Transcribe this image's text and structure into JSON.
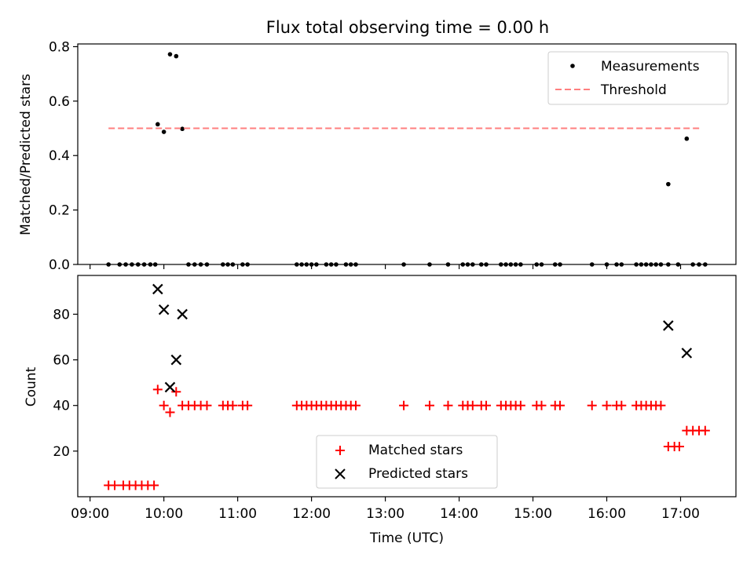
{
  "chart_data": [
    {
      "type": "scatter",
      "title": "Flux total observing time = 0.00 h",
      "xlabel": "",
      "ylabel": "Matched/Predicted stars",
      "xlim": [
        "08:50",
        "17:45"
      ],
      "ylim": [
        0,
        0.81
      ],
      "yticks": [
        "0.0",
        "0.2",
        "0.4",
        "0.6",
        "0.8"
      ],
      "grid": false,
      "legend_position": "upper right",
      "series": [
        {
          "name": "Measurements",
          "marker": "dot",
          "color": "#000000",
          "points": [
            [
              "09:15",
              0
            ],
            [
              "09:24",
              0
            ],
            [
              "09:29",
              0
            ],
            [
              "09:34",
              0
            ],
            [
              "09:39",
              0
            ],
            [
              "09:44",
              0
            ],
            [
              "09:49",
              0
            ],
            [
              "09:53",
              0
            ],
            [
              "09:55",
              0.515
            ],
            [
              "10:00",
              0.487
            ],
            [
              "10:05",
              0.772
            ],
            [
              "10:10",
              0.765
            ],
            [
              "10:15",
              0.498
            ],
            [
              "10:20",
              0
            ],
            [
              "10:25",
              0
            ],
            [
              "10:30",
              0
            ],
            [
              "10:35",
              0
            ],
            [
              "10:48",
              0
            ],
            [
              "10:52",
              0
            ],
            [
              "10:56",
              0
            ],
            [
              "11:04",
              0
            ],
            [
              "11:08",
              0
            ],
            [
              "11:48",
              0
            ],
            [
              "11:52",
              0
            ],
            [
              "11:56",
              0
            ],
            [
              "12:00",
              0
            ],
            [
              "12:04",
              0
            ],
            [
              "12:12",
              0
            ],
            [
              "12:16",
              0
            ],
            [
              "12:20",
              0
            ],
            [
              "12:28",
              0
            ],
            [
              "12:32",
              0
            ],
            [
              "12:36",
              0
            ],
            [
              "13:15",
              0
            ],
            [
              "13:36",
              0
            ],
            [
              "13:51",
              0
            ],
            [
              "14:03",
              0
            ],
            [
              "14:07",
              0
            ],
            [
              "14:11",
              0
            ],
            [
              "14:18",
              0
            ],
            [
              "14:22",
              0
            ],
            [
              "14:34",
              0
            ],
            [
              "14:38",
              0
            ],
            [
              "14:42",
              0
            ],
            [
              "14:46",
              0
            ],
            [
              "14:50",
              0
            ],
            [
              "15:03",
              0
            ],
            [
              "15:07",
              0
            ],
            [
              "15:18",
              0
            ],
            [
              "15:22",
              0
            ],
            [
              "15:48",
              0
            ],
            [
              "16:00",
              0
            ],
            [
              "16:08",
              0
            ],
            [
              "16:12",
              0
            ],
            [
              "16:24",
              0
            ],
            [
              "16:28",
              0
            ],
            [
              "16:32",
              0
            ],
            [
              "16:36",
              0
            ],
            [
              "16:40",
              0
            ],
            [
              "16:44",
              0
            ],
            [
              "16:50",
              0
            ],
            [
              "16:50",
              0.295
            ],
            [
              "16:58",
              0
            ],
            [
              "17:05",
              0.462
            ],
            [
              "17:10",
              0
            ],
            [
              "17:15",
              0
            ],
            [
              "17:20",
              0
            ]
          ]
        },
        {
          "name": "Threshold",
          "style": "dashed",
          "color": "#ff7f7f",
          "points": [
            [
              "09:15",
              0.5
            ],
            [
              "17:17",
              0.5
            ]
          ]
        }
      ]
    },
    {
      "type": "scatter",
      "title": "",
      "xlabel": "Time (UTC)",
      "ylabel": "Count",
      "xlim": [
        "08:50",
        "17:45"
      ],
      "ylim": [
        0,
        97
      ],
      "xticks": [
        "09:00",
        "10:00",
        "11:00",
        "12:00",
        "13:00",
        "14:00",
        "15:00",
        "16:00",
        "17:00"
      ],
      "yticks": [
        "20",
        "40",
        "60",
        "80"
      ],
      "grid": false,
      "legend_position": "lower center",
      "series": [
        {
          "name": "Matched stars",
          "marker": "plus",
          "color": "#ff0000",
          "points": [
            [
              "09:15",
              5
            ],
            [
              "09:20",
              5
            ],
            [
              "09:27",
              5
            ],
            [
              "09:32",
              5
            ],
            [
              "09:37",
              5
            ],
            [
              "09:42",
              5
            ],
            [
              "09:47",
              5
            ],
            [
              "09:52",
              5
            ],
            [
              "09:55",
              47
            ],
            [
              "10:00",
              40
            ],
            [
              "10:05",
              37
            ],
            [
              "10:10",
              46
            ],
            [
              "10:15",
              40
            ],
            [
              "10:20",
              40
            ],
            [
              "10:25",
              40
            ],
            [
              "10:30",
              40
            ],
            [
              "10:35",
              40
            ],
            [
              "10:48",
              40
            ],
            [
              "10:52",
              40
            ],
            [
              "10:56",
              40
            ],
            [
              "11:04",
              40
            ],
            [
              "11:08",
              40
            ],
            [
              "11:48",
              40
            ],
            [
              "11:52",
              40
            ],
            [
              "11:56",
              40
            ],
            [
              "12:00",
              40
            ],
            [
              "12:04",
              40
            ],
            [
              "12:08",
              40
            ],
            [
              "12:12",
              40
            ],
            [
              "12:16",
              40
            ],
            [
              "12:20",
              40
            ],
            [
              "12:24",
              40
            ],
            [
              "12:28",
              40
            ],
            [
              "12:32",
              40
            ],
            [
              "12:36",
              40
            ],
            [
              "13:15",
              40
            ],
            [
              "13:36",
              40
            ],
            [
              "13:51",
              40
            ],
            [
              "14:03",
              40
            ],
            [
              "14:07",
              40
            ],
            [
              "14:11",
              40
            ],
            [
              "14:18",
              40
            ],
            [
              "14:22",
              40
            ],
            [
              "14:34",
              40
            ],
            [
              "14:38",
              40
            ],
            [
              "14:42",
              40
            ],
            [
              "14:46",
              40
            ],
            [
              "14:50",
              40
            ],
            [
              "15:03",
              40
            ],
            [
              "15:07",
              40
            ],
            [
              "15:18",
              40
            ],
            [
              "15:22",
              40
            ],
            [
              "15:48",
              40
            ],
            [
              "16:00",
              40
            ],
            [
              "16:08",
              40
            ],
            [
              "16:12",
              40
            ],
            [
              "16:24",
              40
            ],
            [
              "16:28",
              40
            ],
            [
              "16:32",
              40
            ],
            [
              "16:36",
              40
            ],
            [
              "16:40",
              40
            ],
            [
              "16:44",
              40
            ],
            [
              "16:50",
              22
            ],
            [
              "16:55",
              22
            ],
            [
              "16:59",
              22
            ],
            [
              "17:05",
              29
            ],
            [
              "17:10",
              29
            ],
            [
              "17:15",
              29
            ],
            [
              "17:20",
              29
            ]
          ]
        },
        {
          "name": "Predicted stars",
          "marker": "x",
          "color": "#000000",
          "points": [
            [
              "09:55",
              91
            ],
            [
              "10:00",
              82
            ],
            [
              "10:05",
              48
            ],
            [
              "10:10",
              60
            ],
            [
              "10:15",
              80
            ],
            [
              "16:50",
              75
            ],
            [
              "17:05",
              63
            ]
          ]
        }
      ]
    }
  ]
}
